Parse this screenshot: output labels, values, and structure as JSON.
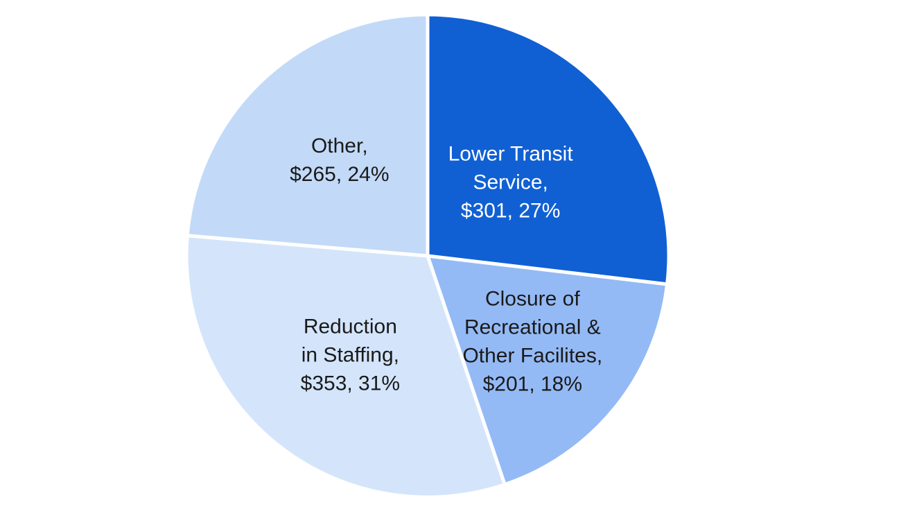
{
  "chart_data": {
    "type": "pie",
    "title": "",
    "start_angle_deg": 0,
    "direction": "clockwise",
    "slices": [
      {
        "name": "Lower Transit Service",
        "value": 301,
        "percent": 27,
        "color": "#1060D4",
        "label_color": "#ffffff",
        "label_lines": [
          "Lower Transit",
          "Service,",
          "$301, 27%"
        ]
      },
      {
        "name": "Closure of Recreational & Other Facilites",
        "value": 201,
        "percent": 18,
        "color": "#94BAF5",
        "label_color": "#1a1a1a",
        "label_lines": [
          "Closure of",
          "Recreational &",
          "Other Facilites,",
          "$201, 18%"
        ]
      },
      {
        "name": "Reduction in Staffing",
        "value": 353,
        "percent": 31,
        "color": "#D4E5FB",
        "label_color": "#1a1a1a",
        "label_lines": [
          "Reduction",
          "in Staffing,",
          "$353, 31%"
        ]
      },
      {
        "name": "Other",
        "value": 265,
        "percent": 24,
        "color": "#C2DAF8",
        "label_color": "#1a1a1a",
        "label_lines": [
          "Other,",
          "$265, 24%"
        ]
      }
    ]
  }
}
